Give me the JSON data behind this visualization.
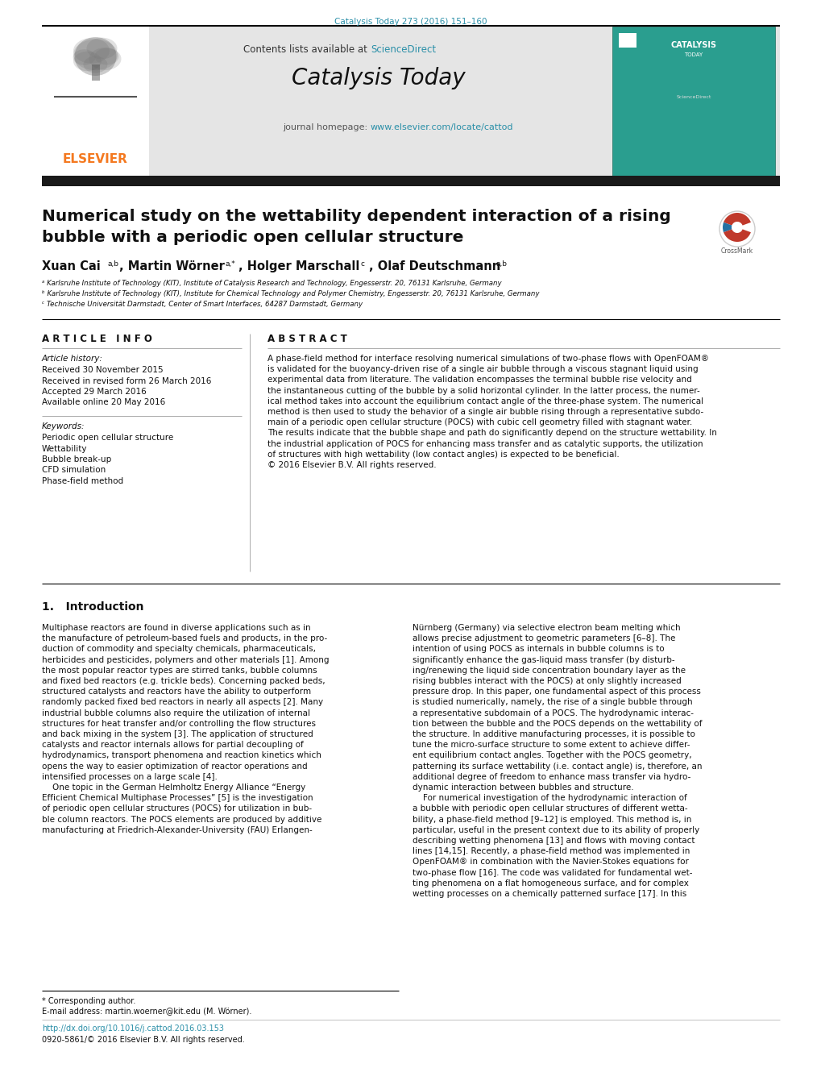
{
  "page_width": 10.2,
  "page_height": 13.51,
  "bg_color": "#ffffff",
  "top_citation": "Catalysis Today 273 (2016) 151–160",
  "top_citation_color": "#2a8fa8",
  "header_bg": "#e5e5e5",
  "journal_name": "Catalysis Today",
  "journal_url": "www.elsevier.com/locate/cattod",
  "journal_url_color": "#2a8fa8",
  "elsevier_color": "#f47920",
  "paper_title_line1": "Numerical study on the wettability dependent interaction of a rising",
  "paper_title_line2": "bubble with a periodic open cellular structure",
  "authors_text": "Xuan Cai",
  "affil_a": "ᵃ Karlsruhe Institute of Technology (KIT), Institute of Catalysis Research and Technology, Engesserstr. 20, 76131 Karlsruhe, Germany",
  "affil_b": "ᵇ Karlsruhe Institute of Technology (KIT), Institute for Chemical Technology and Polymer Chemistry, Engesserstr. 20, 76131 Karlsruhe, Germany",
  "affil_c": "ᶜ Technische Universität Darmstadt, Center of Smart Interfaces, 64287 Darmstadt, Germany",
  "article_info_title": "A R T I C L E   I N F O",
  "abstract_title": "A B S T R A C T",
  "article_history_label": "Article history:",
  "received1": "Received 30 November 2015",
  "received2": "Received in revised form 26 March 2016",
  "accepted": "Accepted 29 March 2016",
  "available": "Available online 20 May 2016",
  "keywords_label": "Keywords:",
  "kw1": "Periodic open cellular structure",
  "kw2": "Wettability",
  "kw3": "Bubble break-up",
  "kw4": "CFD simulation",
  "kw5": "Phase-field method",
  "abstract_text_lines": [
    "A phase-field method for interface resolving numerical simulations of two-phase flows with OpenFOAM®",
    "is validated for the buoyancy-driven rise of a single air bubble through a viscous stagnant liquid using",
    "experimental data from literature. The validation encompasses the terminal bubble rise velocity and",
    "the instantaneous cutting of the bubble by a solid horizontal cylinder. In the latter process, the numer-",
    "ical method takes into account the equilibrium contact angle of the three-phase system. The numerical",
    "method is then used to study the behavior of a single air bubble rising through a representative subdo-",
    "main of a periodic open cellular structure (POCS) with cubic cell geometry filled with stagnant water.",
    "The results indicate that the bubble shape and path do significantly depend on the structure wettability. In",
    "the industrial application of POCS for enhancing mass transfer and as catalytic supports, the utilization",
    "of structures with high wettability (low contact angles) is expected to be beneficial.",
    "© 2016 Elsevier B.V. All rights reserved."
  ],
  "section1_title": "1.   Introduction",
  "intro_col1_lines": [
    "Multiphase reactors are found in diverse applications such as in",
    "the manufacture of petroleum-based fuels and products, in the pro-",
    "duction of commodity and specialty chemicals, pharmaceuticals,",
    "herbicides and pesticides, polymers and other materials [1]. Among",
    "the most popular reactor types are stirred tanks, bubble columns",
    "and fixed bed reactors (e.g. trickle beds). Concerning packed beds,",
    "structured catalysts and reactors have the ability to outperform",
    "randomly packed fixed bed reactors in nearly all aspects [2]. Many",
    "industrial bubble columns also require the utilization of internal",
    "structures for heat transfer and/or controlling the flow structures",
    "and back mixing in the system [3]. The application of structured",
    "catalysts and reactor internals allows for partial decoupling of",
    "hydrodynamics, transport phenomena and reaction kinetics which",
    "opens the way to easier optimization of reactor operations and",
    "intensified processes on a large scale [4].",
    "    One topic in the German Helmholtz Energy Alliance “Energy",
    "Efficient Chemical Multiphase Processes” [5] is the investigation",
    "of periodic open cellular structures (POCS) for utilization in bub-",
    "ble column reactors. The POCS elements are produced by additive",
    "manufacturing at Friedrich-Alexander-University (FAU) Erlangen-"
  ],
  "intro_col2_lines": [
    "Nürnberg (Germany) via selective electron beam melting which",
    "allows precise adjustment to geometric parameters [6–8]. The",
    "intention of using POCS as internals in bubble columns is to",
    "significantly enhance the gas-liquid mass transfer (by disturb-",
    "ing/renewing the liquid side concentration boundary layer as the",
    "rising bubbles interact with the POCS) at only slightly increased",
    "pressure drop. In this paper, one fundamental aspect of this process",
    "is studied numerically, namely, the rise of a single bubble through",
    "a representative subdomain of a POCS. The hydrodynamic interac-",
    "tion between the bubble and the POCS depends on the wettability of",
    "the structure. In additive manufacturing processes, it is possible to",
    "tune the micro-surface structure to some extent to achieve differ-",
    "ent equilibrium contact angles. Together with the POCS geometry,",
    "patterning its surface wettability (i.e. contact angle) is, therefore, an",
    "additional degree of freedom to enhance mass transfer via hydro-",
    "dynamic interaction between bubbles and structure.",
    "    For numerical investigation of the hydrodynamic interaction of",
    "a bubble with periodic open cellular structures of different wetta-",
    "bility, a phase-field method [9–12] is employed. This method is, in",
    "particular, useful in the present context due to its ability of properly",
    "describing wetting phenomena [13] and flows with moving contact",
    "lines [14,15]. Recently, a phase-field method was implemented in",
    "OpenFOAM® in combination with the Navier-Stokes equations for",
    "two-phase flow [16]. The code was validated for fundamental wet-",
    "ting phenomena on a flat homogeneous surface, and for complex",
    "wetting processes on a chemically patterned surface [17]. In this"
  ],
  "footer_corr": "* Corresponding author.",
  "footer_email": "E-mail address: martin.woerner@kit.edu (M. Wörner).",
  "footer_doi": "http://dx.doi.org/10.1016/j.cattod.2016.03.153",
  "footer_copy": "0920-5861/© 2016 Elsevier B.V. All rights reserved.",
  "dark_bar_color": "#1a1a1a",
  "teal_color": "#2a8fa8",
  "sep_color": "#000000",
  "light_sep_color": "#aaaaaa"
}
